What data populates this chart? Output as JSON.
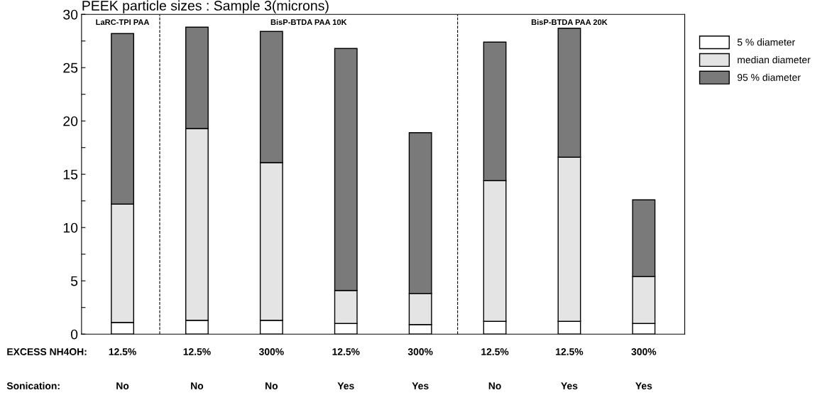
{
  "chart_data": {
    "type": "bar",
    "stacked": true,
    "title": "PEEK particle sizes : Sample 3(microns)",
    "categories": [
      "12.5%\n\nNo",
      "12.5%\n\nNo",
      "300%\n\nNo",
      "12.5%\n\nYes",
      "300%\n\nYes",
      "12.5%\n\nNo",
      "12.5%\n\nYes",
      "300%\n\nYes"
    ],
    "series": [
      {
        "name": "5 % diameter",
        "color": "#ffffff",
        "values": [
          1.1,
          1.3,
          1.3,
          1.0,
          0.9,
          1.2,
          1.2,
          1.0
        ]
      },
      {
        "name": "median diameter",
        "color": "#e4e4e4",
        "values": [
          11.1,
          18.0,
          14.8,
          3.1,
          2.9,
          13.2,
          15.4,
          4.4
        ]
      },
      {
        "name": "95 % diameter",
        "color": "#7a7a7a",
        "values": [
          16.0,
          9.5,
          12.3,
          22.7,
          15.1,
          13.0,
          12.1,
          7.2
        ]
      }
    ],
    "ylim": [
      0,
      30
    ],
    "yticks": [
      0,
      {
        "value": 2.5,
        "label": null
      },
      5,
      {
        "value": 7.5,
        "label": null
      },
      10,
      {
        "value": 12.5,
        "label": null
      },
      15,
      {
        "value": 17.5,
        "label": null
      },
      20,
      {
        "value": 22.5,
        "label": null
      },
      25,
      {
        "value": 27.5,
        "label": null
      },
      30
    ],
    "annotations": [
      "LaRC-TPI PAA",
      "BisP-BTDA PAA 10K",
      "BisP-BTDA PAA 20K",
      "EXCESS NH4OH:",
      "Sonication:"
    ],
    "legend": "right",
    "grid": false
  }
}
